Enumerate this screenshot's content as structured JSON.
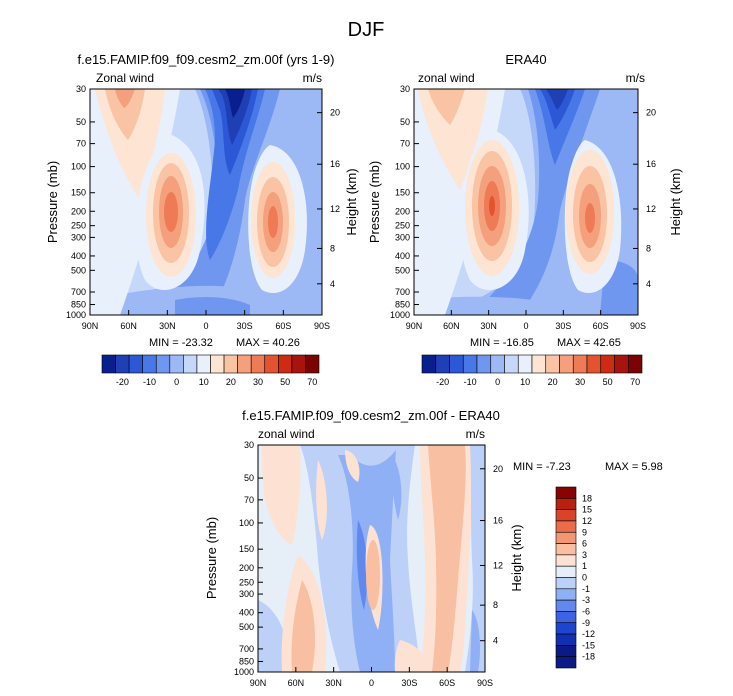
{
  "figure": {
    "title": "DJF"
  },
  "colors": {
    "abs_scale": [
      "#0a1f8f",
      "#1f3fb4",
      "#2c58d6",
      "#4878e8",
      "#7097f0",
      "#9cb8f5",
      "#c5d8fa",
      "#e8f0fb",
      "#fde4d3",
      "#f9c3a4",
      "#f4a07c",
      "#ee7b56",
      "#e4532f",
      "#cd2b14",
      "#a8140d",
      "#7a0403"
    ],
    "diff_scale": [
      "#0b1a86",
      "#1130b0",
      "#1f45d0",
      "#3b63e4",
      "#6088ee",
      "#8fb0f4",
      "#bcd0f8",
      "#e6eef8",
      "#fde2d3",
      "#f8bfa2",
      "#f29674",
      "#ea6c4b",
      "#d9432a",
      "#b8200f",
      "#880404"
    ]
  },
  "chart_data": [
    {
      "type": "contour",
      "title": "f.e15.FAMIP.f09_f09.cesm2_zm.00f (yrs 1-9)",
      "left_label": "Zonal wind",
      "right_label": "m/s",
      "ylabel": "Pressure (mb)",
      "y2label": "Height (km)",
      "xticks": [
        "90N",
        "60N",
        "30N",
        "0",
        "30S",
        "60S",
        "90S"
      ],
      "yticks": [
        "30",
        "50",
        "70",
        "100",
        "150",
        "200",
        "250",
        "300",
        "400",
        "500",
        "700",
        "850",
        "1000"
      ],
      "y2ticks": [
        "20",
        "16",
        "12",
        "8",
        "4"
      ],
      "min_label": "MIN = -23.32",
      "max_label": "MAX = 40.26",
      "min": -23.32,
      "max": 40.26,
      "colorbar_labels": [
        "-20",
        "-10",
        "0",
        "10",
        "20",
        "30",
        "50",
        "70"
      ]
    },
    {
      "type": "contour",
      "title": "ERA40",
      "left_label": "zonal wind",
      "right_label": "m/s",
      "ylabel": "Pressure (mb)",
      "y2label": "Height (km)",
      "xticks": [
        "90N",
        "60N",
        "30N",
        "0",
        "30S",
        "60S",
        "90S"
      ],
      "yticks": [
        "30",
        "50",
        "70",
        "100",
        "150",
        "200",
        "250",
        "300",
        "400",
        "500",
        "700",
        "850",
        "1000"
      ],
      "y2ticks": [
        "20",
        "16",
        "12",
        "8",
        "4"
      ],
      "min_label": "MIN = -16.85",
      "max_label": "MAX = 42.65",
      "min": -16.85,
      "max": 42.65,
      "colorbar_labels": [
        "-20",
        "-10",
        "0",
        "10",
        "20",
        "30",
        "50",
        "70"
      ]
    },
    {
      "type": "contour",
      "title": "f.e15.FAMIP.f09_f09.cesm2_zm.00f - ERA40",
      "left_label": "zonal wind",
      "right_label": "m/s",
      "ylabel": "Pressure (mb)",
      "y2label": "Height (km)",
      "xticks": [
        "90N",
        "60N",
        "30N",
        "0",
        "30S",
        "60S",
        "90S"
      ],
      "yticks": [
        "30",
        "50",
        "70",
        "100",
        "150",
        "200",
        "250",
        "300",
        "400",
        "500",
        "700",
        "850",
        "1000"
      ],
      "y2ticks": [
        "20",
        "16",
        "12",
        "8",
        "4"
      ],
      "min_label": "MIN = -7.23",
      "max_label": "MAX = 5.98",
      "min": -7.23,
      "max": 5.98,
      "colorbar_labels": [
        "18",
        "15",
        "12",
        "9",
        "6",
        "3",
        "1",
        "0",
        "-1",
        "-3",
        "-6",
        "-9",
        "-12",
        "-15",
        "-18"
      ]
    }
  ]
}
